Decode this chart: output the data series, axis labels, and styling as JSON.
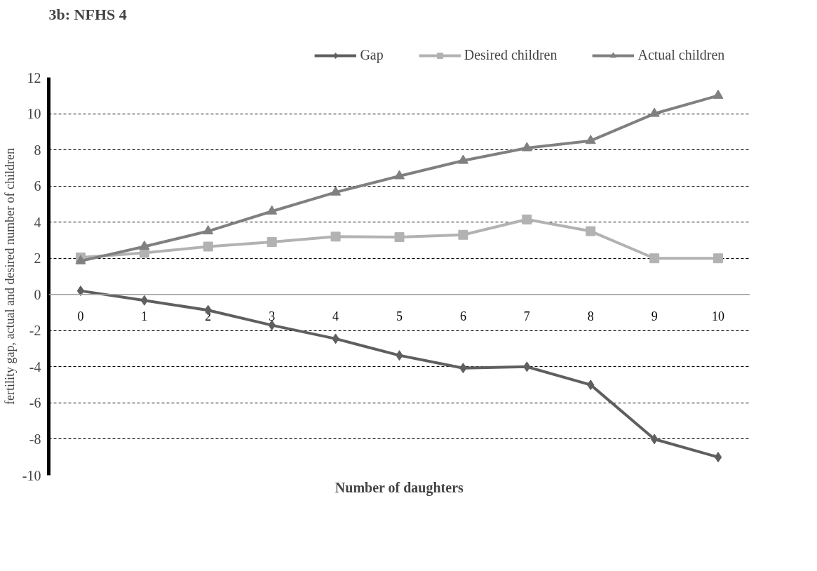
{
  "chart_data": {
    "type": "line",
    "title": "3b: NFHS 4",
    "xlabel": "Number of daughters",
    "ylabel": "fertility gap, actual and desired number of children",
    "categories": [
      "0",
      "1",
      "2",
      "3",
      "4",
      "5",
      "6",
      "7",
      "8",
      "9",
      "10"
    ],
    "series": [
      {
        "name": "Gap",
        "color": "#5f5f5f",
        "marker": "diamond",
        "values": [
          0.2,
          -0.33,
          -0.87,
          -1.7,
          -2.45,
          -3.37,
          -4.07,
          -4.0,
          -5.0,
          -8.0,
          -9.0
        ]
      },
      {
        "name": "Desired children",
        "color": "#b2b2b2",
        "marker": "square",
        "values": [
          2.05,
          2.3,
          2.65,
          2.9,
          3.2,
          3.17,
          3.3,
          4.15,
          3.5,
          2.0,
          2.0
        ]
      },
      {
        "name": "Actual children",
        "color": "#808080",
        "marker": "triangle",
        "values": [
          1.85,
          2.65,
          3.5,
          4.6,
          5.65,
          6.55,
          7.4,
          8.1,
          8.5,
          10.0,
          11.0
        ]
      }
    ],
    "ylim": [
      -10,
      12
    ],
    "yticks": [
      -10,
      -8,
      -6,
      -4,
      -2,
      0,
      2,
      4,
      6,
      8,
      10,
      12
    ],
    "grid": "y",
    "legend": "top",
    "line_style": "solid"
  }
}
